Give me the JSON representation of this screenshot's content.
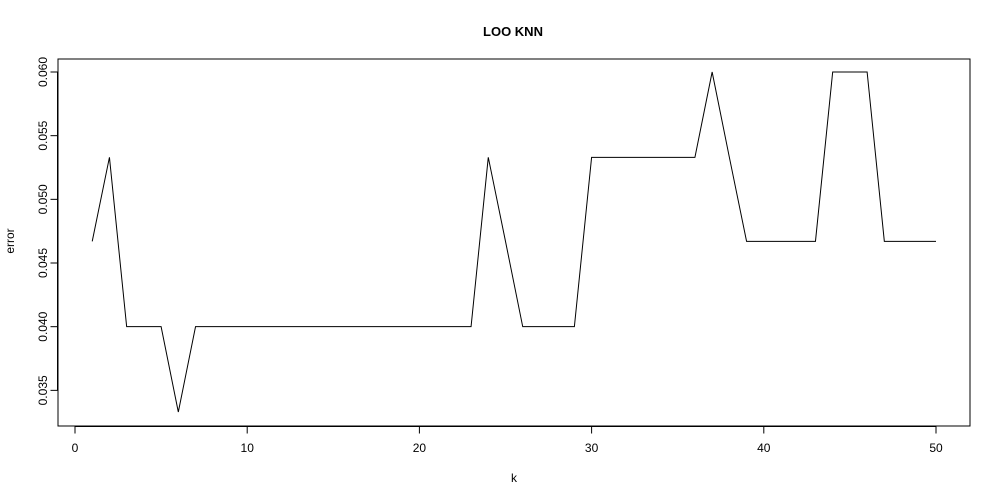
{
  "chart_data": {
    "type": "line",
    "title": "LOO KNN",
    "xlabel": "k",
    "ylabel": "error",
    "xlim": [
      0,
      50
    ],
    "ylim": [
      0.0333,
      0.06
    ],
    "x_ticks": [
      0,
      10,
      20,
      30,
      40,
      50
    ],
    "x_tick_labels": [
      "0",
      "10",
      "20",
      "30",
      "40",
      "50"
    ],
    "y_ticks": [
      0.035,
      0.04,
      0.045,
      0.05,
      0.055,
      0.06
    ],
    "y_tick_labels": [
      "0.035",
      "0.040",
      "0.045",
      "0.050",
      "0.055",
      "0.060"
    ],
    "grid": false,
    "legend": "none",
    "line_color": "#000000",
    "series": [
      {
        "x": [
          1,
          2,
          3,
          4,
          5,
          6,
          7,
          8,
          9,
          10,
          11,
          12,
          13,
          14,
          15,
          16,
          17,
          18,
          19,
          20,
          21,
          22,
          23,
          24,
          25,
          26,
          27,
          28,
          29,
          30,
          31,
          32,
          33,
          34,
          35,
          36,
          37,
          38,
          39,
          40,
          41,
          42,
          43,
          44,
          45,
          46,
          47,
          48,
          49,
          50
        ],
        "values": [
          0.0467,
          0.0533,
          0.04,
          0.04,
          0.04,
          0.0333,
          0.04,
          0.04,
          0.04,
          0.04,
          0.04,
          0.04,
          0.04,
          0.04,
          0.04,
          0.04,
          0.04,
          0.04,
          0.04,
          0.04,
          0.04,
          0.04,
          0.04,
          0.0533,
          0.0467,
          0.04,
          0.04,
          0.04,
          0.04,
          0.0533,
          0.0533,
          0.0533,
          0.0533,
          0.0533,
          0.0533,
          0.0533,
          0.06,
          0.0533,
          0.0467,
          0.0467,
          0.0467,
          0.0467,
          0.0467,
          0.06,
          0.06,
          0.06,
          0.0467,
          0.0467,
          0.0467,
          0.0467
        ]
      }
    ]
  }
}
